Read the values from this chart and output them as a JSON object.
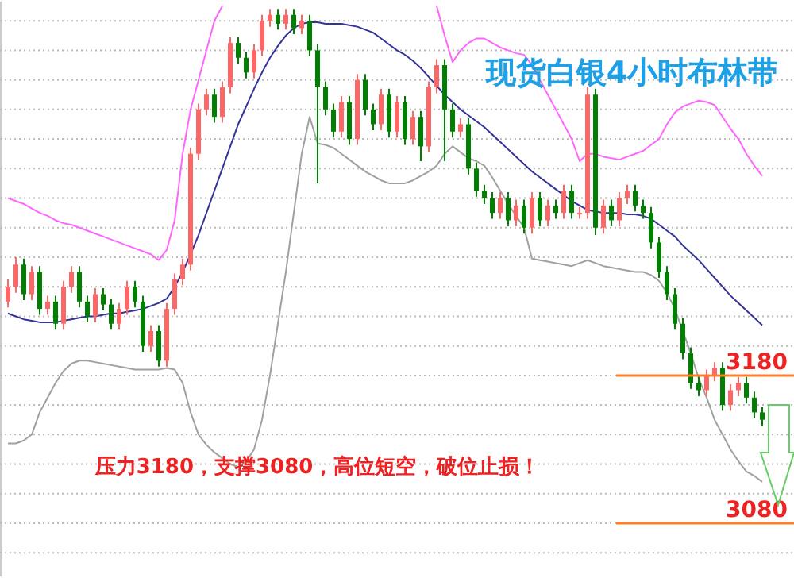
{
  "chart_data": {
    "type": "candlestick",
    "title": "现货白银4小时布林带",
    "annotations": [
      "压力3180，支撑3080，高位短空，破位止损！"
    ],
    "categories": [
      null,
      null,
      null,
      null,
      null,
      null,
      null,
      null,
      null,
      null,
      null,
      null,
      null,
      null,
      null,
      null,
      null,
      null,
      null,
      null,
      null,
      null,
      null,
      null,
      null,
      null,
      null,
      null,
      null,
      null,
      null,
      null,
      null,
      null,
      null,
      null,
      null,
      null,
      null,
      null,
      null,
      null,
      null,
      null,
      null,
      null,
      null,
      null,
      null,
      null,
      null,
      null,
      null,
      null,
      null,
      null,
      null,
      null,
      null,
      null,
      null,
      null,
      null,
      null,
      null,
      null,
      null,
      null,
      null,
      null,
      null,
      null,
      null,
      null,
      null,
      null,
      null,
      null,
      null,
      null,
      null,
      null,
      null,
      null,
      null,
      null,
      null,
      null,
      null,
      null,
      null,
      null,
      null,
      null,
      null,
      null
    ],
    "ohlc": [
      [
        3230,
        3245,
        3226,
        3240
      ],
      [
        3240,
        3260,
        3236,
        3255
      ],
      [
        3255,
        3259,
        3231,
        3235
      ],
      [
        3235,
        3254,
        3231,
        3250
      ],
      [
        3250,
        3254,
        3221,
        3225
      ],
      [
        3225,
        3234,
        3221,
        3230
      ],
      [
        3230,
        3234,
        3211,
        3215
      ],
      [
        3215,
        3244,
        3211,
        3240
      ],
      [
        3240,
        3254,
        3236,
        3250
      ],
      [
        3250,
        3254,
        3226,
        3230
      ],
      [
        3230,
        3234,
        3216,
        3220
      ],
      [
        3220,
        3239,
        3216,
        3235
      ],
      [
        3235,
        3239,
        3224,
        3228
      ],
      [
        3228,
        3232,
        3211,
        3215
      ],
      [
        3215,
        3229,
        3211,
        3225
      ],
      [
        3225,
        3244,
        3221,
        3240
      ],
      [
        3240,
        3244,
        3226,
        3230
      ],
      [
        3230,
        3234,
        3196,
        3200
      ],
      [
        3200,
        3214,
        3196,
        3210
      ],
      [
        3210,
        3214,
        3186,
        3190
      ],
      [
        3190,
        3229,
        3186,
        3225
      ],
      [
        3225,
        3249,
        3221,
        3245
      ],
      [
        3245,
        3259,
        3241,
        3255
      ],
      [
        3255,
        3334,
        3251,
        3330
      ],
      [
        3330,
        3364,
        3326,
        3360
      ],
      [
        3360,
        3374,
        3356,
        3370
      ],
      [
        3370,
        3374,
        3351,
        3355
      ],
      [
        3355,
        3379,
        3351,
        3375
      ],
      [
        3375,
        3409,
        3371,
        3405
      ],
      [
        3405,
        3409,
        3391,
        3395
      ],
      [
        3395,
        3399,
        3381,
        3385
      ],
      [
        3385,
        3404,
        3381,
        3400
      ],
      [
        3400,
        3424,
        3396,
        3420
      ],
      [
        3420,
        3428,
        3416,
        3424
      ],
      [
        3424,
        3428,
        3414,
        3418
      ],
      [
        3418,
        3428,
        3414,
        3424
      ],
      [
        3424,
        3428,
        3411,
        3415
      ],
      [
        3415,
        3424,
        3411,
        3420
      ],
      [
        3420,
        3424,
        3396,
        3400
      ],
      [
        3400,
        3404,
        3310,
        3375
      ],
      [
        3375,
        3379,
        3356,
        3360
      ],
      [
        3360,
        3364,
        3341,
        3345
      ],
      [
        3345,
        3369,
        3341,
        3365
      ],
      [
        3365,
        3369,
        3336,
        3340
      ],
      [
        3340,
        3384,
        3336,
        3380
      ],
      [
        3380,
        3384,
        3356,
        3360
      ],
      [
        3360,
        3364,
        3346,
        3350
      ],
      [
        3350,
        3374,
        3346,
        3370
      ],
      [
        3370,
        3374,
        3341,
        3345
      ],
      [
        3345,
        3369,
        3341,
        3365
      ],
      [
        3365,
        3369,
        3336,
        3340
      ],
      [
        3340,
        3359,
        3336,
        3355
      ],
      [
        3355,
        3359,
        3325,
        3335
      ],
      [
        3335,
        3379,
        3331,
        3375
      ],
      [
        3375,
        3394,
        3371,
        3390
      ],
      [
        3390,
        3394,
        3325,
        3360
      ],
      [
        3360,
        3364,
        3341,
        3345
      ],
      [
        3345,
        3354,
        3341,
        3350
      ],
      [
        3350,
        3354,
        3316,
        3320
      ],
      [
        3320,
        3324,
        3301,
        3305
      ],
      [
        3305,
        3309,
        3296,
        3300
      ],
      [
        3300,
        3304,
        3286,
        3290
      ],
      [
        3290,
        3304,
        3286,
        3300
      ],
      [
        3300,
        3304,
        3281,
        3285
      ],
      [
        3285,
        3299,
        3281,
        3295
      ],
      [
        3295,
        3299,
        3276,
        3280
      ],
      [
        3280,
        3304,
        3276,
        3300
      ],
      [
        3300,
        3304,
        3281,
        3285
      ],
      [
        3285,
        3299,
        3281,
        3295
      ],
      [
        3295,
        3299,
        3286,
        3290
      ],
      [
        3290,
        3309,
        3286,
        3305
      ],
      [
        3305,
        3309,
        3286,
        3290
      ],
      [
        3290,
        3294,
        3286,
        3290
      ],
      [
        3290,
        3375,
        3286,
        3370
      ],
      [
        3370,
        3374,
        3275,
        3280
      ],
      [
        3280,
        3299,
        3276,
        3295
      ],
      [
        3295,
        3299,
        3281,
        3285
      ],
      [
        3285,
        3304,
        3281,
        3300
      ],
      [
        3300,
        3309,
        3296,
        3305
      ],
      [
        3305,
        3309,
        3291,
        3295
      ],
      [
        3295,
        3299,
        3286,
        3290
      ],
      [
        3290,
        3294,
        3266,
        3270
      ],
      [
        3270,
        3274,
        3246,
        3250
      ],
      [
        3250,
        3254,
        3231,
        3235
      ],
      [
        3235,
        3239,
        3211,
        3215
      ],
      [
        3215,
        3219,
        3191,
        3195
      ],
      [
        3195,
        3199,
        3171,
        3175
      ],
      [
        3175,
        3179,
        3166,
        3170
      ],
      [
        3170,
        3184,
        3166,
        3180
      ],
      [
        3180,
        3189,
        3176,
        3185
      ],
      [
        3185,
        3189,
        3156,
        3160
      ],
      [
        3160,
        3174,
        3156,
        3170
      ],
      [
        3170,
        3179,
        3166,
        3175
      ],
      [
        3175,
        3179,
        3161,
        3165
      ],
      [
        3165,
        3169,
        3151,
        3155
      ],
      [
        3155,
        3159,
        3146,
        3150
      ]
    ],
    "colors": [
      "#ff6666",
      "#ff6666",
      "#008000",
      "#ff6666",
      "#008000",
      "#ff6666",
      "#008000",
      "#ff6666",
      "#ff6666",
      "#008000",
      "#008000",
      "#ff6666",
      "#008000",
      "#008000",
      "#ff6666",
      "#ff6666",
      "#008000",
      "#008000",
      "#ff6666",
      "#008000",
      "#ff6666",
      "#ff6666",
      "#ff6666",
      "#ff6666",
      "#ff6666",
      "#ff6666",
      "#008000",
      "#ff6666",
      "#ff6666",
      "#008000",
      "#008000",
      "#ff6666",
      "#ff6666",
      "#ff6666",
      "#008000",
      "#ff6666",
      "#008000",
      "#ff6666",
      "#008000",
      "#008000",
      "#008000",
      "#008000",
      "#ff6666",
      "#008000",
      "#ff6666",
      "#008000",
      "#008000",
      "#ff6666",
      "#008000",
      "#ff6666",
      "#008000",
      "#ff6666",
      "#008000",
      "#ff6666",
      "#ff6666",
      "#008000",
      "#008000",
      "#ff6666",
      "#008000",
      "#008000",
      "#008000",
      "#008000",
      "#ff6666",
      "#008000",
      "#ff6666",
      "#008000",
      "#ff6666",
      "#008000",
      "#ff6666",
      "#008000",
      "#ff6666",
      "#008000",
      "#ff6666",
      "#ff6666",
      "#008000",
      "#ff6666",
      "#008000",
      "#ff6666",
      "#ff6666",
      "#008000",
      "#008000",
      "#008000",
      "#008000",
      "#008000",
      "#008000",
      "#008000",
      "#008000",
      "#008000",
      "#ff6666",
      "#ff6666",
      "#008000",
      "#ff6666",
      "#ff6666",
      "#008000",
      "#008000",
      "#008000"
    ],
    "series": [
      {
        "type": "line",
        "color": "#ff66ff",
        "values": [
          3300,
          3298,
          3296,
          3293,
          3290,
          3288,
          3285,
          3283,
          3282,
          3280,
          3278,
          3276,
          3274,
          3272,
          3270,
          3268,
          3266,
          3264,
          3262,
          3258,
          3265,
          3285,
          3330,
          3360,
          3380,
          3400,
          3420,
          3430,
          null,
          null,
          null,
          null,
          null,
          null,
          null,
          null,
          null,
          null,
          null,
          null,
          null,
          null,
          null,
          null,
          null,
          null,
          null,
          null,
          null,
          null,
          null,
          null,
          null,
          null,
          3430,
          3410,
          3392,
          3400,
          3405,
          3408,
          3408,
          3405,
          3402,
          3400,
          3398,
          3397,
          3390,
          3380,
          3370,
          3360,
          3350,
          3340,
          3325,
          3330,
          3330,
          3328,
          3327,
          3326,
          3328,
          3330,
          3332,
          3336,
          3340,
          3350,
          3358,
          3362,
          3364,
          3366,
          3365,
          3363,
          3355,
          3347,
          3340,
          3330,
          3322,
          3315
        ]
      },
      {
        "type": "line",
        "color": "#333399",
        "values": [
          3222,
          3220,
          3218,
          3217,
          3216,
          3216,
          3216,
          3217,
          3218,
          3219,
          3220,
          3220,
          3221,
          3222,
          3222,
          3223,
          3224,
          3225,
          3227,
          3229,
          3232,
          3240,
          3250,
          3262,
          3275,
          3290,
          3305,
          3320,
          3335,
          3350,
          3362,
          3374,
          3385,
          3395,
          3403,
          3410,
          3415,
          3418,
          3419,
          3419,
          3418,
          3418,
          3418,
          3417,
          3416,
          3414,
          3412,
          3408,
          3404,
          3400,
          3397,
          3393,
          3388,
          3382,
          3376,
          3370,
          3365,
          3360,
          3356,
          3352,
          3348,
          3343,
          3338,
          3333,
          3328,
          3323,
          3318,
          3314,
          3310,
          3306,
          3302,
          3298,
          3295,
          3292,
          3291,
          3290,
          3290,
          3290,
          3289,
          3289,
          3288,
          3286,
          3282,
          3278,
          3274,
          3268,
          3263,
          3258,
          3252,
          3246,
          3240,
          3234,
          3229,
          3224,
          3219,
          3214
        ]
      },
      {
        "type": "line",
        "color": "#a0a0a0",
        "values": [
          3134,
          3134,
          3136,
          3140,
          3155,
          3165,
          3175,
          3183,
          3188,
          3190,
          3190,
          3189,
          3188,
          3187,
          3186,
          3185,
          3184,
          3184,
          3184,
          3184,
          3185,
          3184,
          3175,
          3155,
          3140,
          3133,
          3128,
          3124,
          3120,
          3118,
          3122,
          3130,
          3150,
          3180,
          3215,
          3250,
          3290,
          3330,
          3355,
          3337,
          3336,
          3334,
          3330,
          3326,
          3322,
          3318,
          3315,
          3312,
          3310,
          3310,
          3310,
          3312,
          3315,
          3318,
          3322,
          3330,
          3335,
          3331,
          3327,
          3325,
          3322,
          3314,
          3305,
          3296,
          3288,
          3280,
          3259,
          3258,
          3257,
          3256,
          3255,
          3254,
          3256,
          3258,
          3256,
          3254,
          3253,
          3252,
          3251,
          3250,
          3250,
          3248,
          3244,
          3236,
          3225,
          3210,
          3195,
          3178,
          3165,
          3150,
          3140,
          3130,
          3122,
          3115,
          3112,
          3108
        ]
      }
    ],
    "yticks": [
      {
        "value": 3060,
        "label": null
      },
      {
        "value": 3080,
        "label": "3080"
      },
      {
        "value": 3100,
        "label": null
      },
      {
        "value": 3120,
        "label": null
      },
      {
        "value": 3140,
        "label": null
      },
      {
        "value": 3160,
        "label": null
      },
      {
        "value": 3180,
        "label": "3180"
      },
      {
        "value": 3200,
        "label": null
      },
      {
        "value": 3220,
        "label": null
      },
      {
        "value": 3240,
        "label": null
      },
      {
        "value": 3260,
        "label": null
      },
      {
        "value": 3280,
        "label": null
      },
      {
        "value": 3300,
        "label": null
      },
      {
        "value": 3320,
        "label": null
      },
      {
        "value": 3340,
        "label": null
      },
      {
        "value": 3360,
        "label": null
      },
      {
        "value": 3380,
        "label": null
      },
      {
        "value": 3400,
        "label": null
      },
      {
        "value": 3420,
        "label": null
      }
    ],
    "ylim": [
      3044,
      3433
    ],
    "grid": "y",
    "tick_labels": "y",
    "ref_lines": [
      {
        "axis": "y",
        "value": 3180,
        "color": "#ff7f27"
      },
      {
        "axis": "y",
        "value": 3080,
        "color": "#ff7f27"
      }
    ]
  }
}
